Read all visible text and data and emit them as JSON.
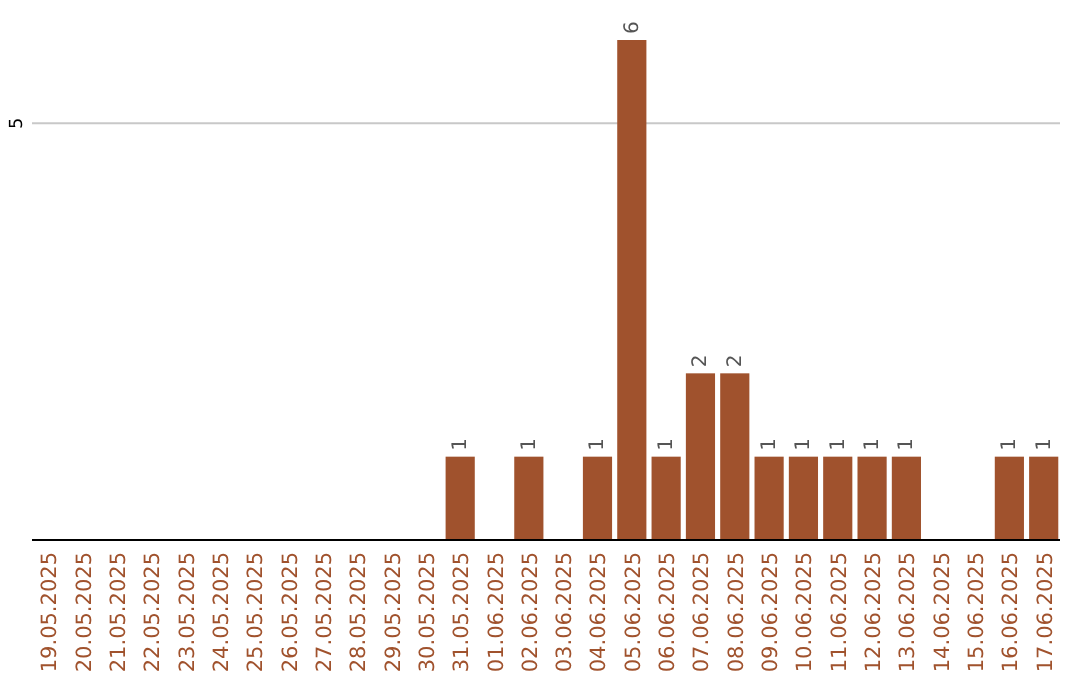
{
  "chart_data": {
    "type": "bar",
    "categories": [
      "19.05.2025",
      "20.05.2025",
      "21.05.2025",
      "22.05.2025",
      "23.05.2025",
      "24.05.2025",
      "25.05.2025",
      "26.05.2025",
      "27.05.2025",
      "28.05.2025",
      "29.05.2025",
      "30.05.2025",
      "31.05.2025",
      "01.06.2025",
      "02.06.2025",
      "03.06.2025",
      "04.06.2025",
      "05.06.2025",
      "06.06.2025",
      "07.06.2025",
      "08.06.2025",
      "09.06.2025",
      "10.06.2025",
      "11.06.2025",
      "12.06.2025",
      "13.06.2025",
      "14.06.2025",
      "15.06.2025",
      "16.06.2025",
      "17.06.2025"
    ],
    "values": [
      null,
      null,
      null,
      null,
      null,
      null,
      null,
      null,
      null,
      null,
      null,
      null,
      1,
      null,
      1,
      null,
      1,
      6,
      1,
      2,
      2,
      1,
      1,
      1,
      1,
      1,
      null,
      null,
      1,
      1
    ],
    "data_labels": true,
    "color": "#a0522d",
    "ref_lines": [
      {
        "axis": "y",
        "value": 5,
        "label": "5",
        "color": "#c8c8c8"
      }
    ]
  }
}
